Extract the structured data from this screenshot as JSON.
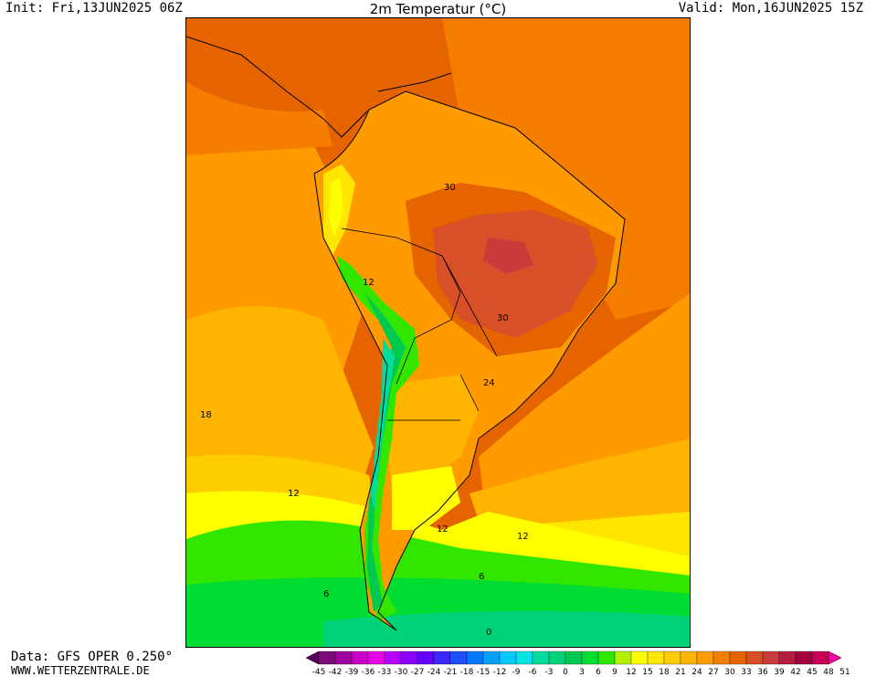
{
  "header": {
    "init": "Init: Fri,13JUN2025 06Z",
    "title": "2m Temperatur (°C)",
    "valid": "Valid: Mon,16JUN2025 15Z"
  },
  "footer": {
    "source": "Data: GFS OPER 0.250°",
    "website": "WWW.WETTERZENTRALE.DE"
  },
  "map": {
    "region": "South America",
    "contour_labels": [
      "30",
      "30",
      "24",
      "12",
      "18",
      "12",
      "12",
      "12",
      "6",
      "6",
      "0"
    ]
  },
  "colorbar": {
    "ticks": [
      "-45",
      "-42",
      "-39",
      "-36",
      "-33",
      "-30",
      "-27",
      "-24",
      "-21",
      "-18",
      "-15",
      "-12",
      "-9",
      "-6",
      "-3",
      "0",
      "3",
      "6",
      "9",
      "12",
      "15",
      "18",
      "21",
      "24",
      "27",
      "30",
      "33",
      "36",
      "39",
      "42",
      "45",
      "48",
      "51"
    ],
    "colors": [
      "#5a005a",
      "#7d0a7d",
      "#a000a0",
      "#c800c8",
      "#e600e6",
      "#b400ff",
      "#8c00ff",
      "#6400ff",
      "#3c28ff",
      "#1e50ff",
      "#0078ff",
      "#00a0ff",
      "#00c8ff",
      "#00e6e6",
      "#00dca0",
      "#00d278",
      "#00c850",
      "#00dc32",
      "#32e600",
      "#b4f000",
      "#ffff00",
      "#ffe600",
      "#ffcd00",
      "#ffb400",
      "#ff9b00",
      "#f57d00",
      "#e66400",
      "#d75028",
      "#c83c3c",
      "#b41e3c",
      "#a0003c",
      "#c8005a",
      "#ff00a0"
    ]
  }
}
